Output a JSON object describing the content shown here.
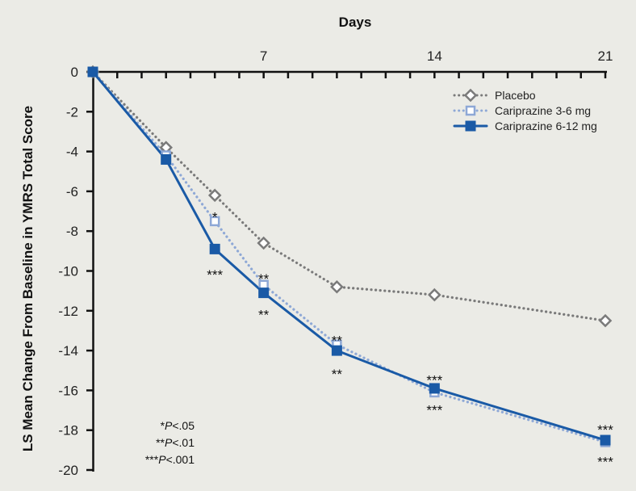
{
  "chart_data": {
    "type": "line",
    "xlabel": "Days",
    "ylabel": "LS Mean Change From Baseline in YMRS Total Score",
    "x_ticks": [
      7,
      14,
      21
    ],
    "y_ticks": [
      0,
      -2,
      -4,
      -6,
      -8,
      -10,
      -12,
      -14,
      -16,
      -18,
      -20
    ],
    "xlim": [
      0,
      21
    ],
    "ylim": [
      -20,
      0
    ],
    "x": [
      0,
      3,
      5,
      7,
      10,
      14,
      21
    ],
    "series": [
      {
        "name": "Placebo",
        "color": "#7a7a7a",
        "style": "dotted",
        "marker": "diamond-open",
        "values": [
          0,
          -3.8,
          -6.2,
          -8.6,
          -10.8,
          -11.2,
          -12.5
        ]
      },
      {
        "name": "Cariprazine 3-6 mg",
        "color": "#8ea8d6",
        "style": "dotted",
        "marker": "square-open",
        "values": [
          0,
          -4.2,
          -7.5,
          -10.7,
          -13.7,
          -16.1,
          -18.6
        ]
      },
      {
        "name": "Cariprazine 6-12 mg",
        "color": "#1a5aa6",
        "style": "solid",
        "marker": "square-filled",
        "values": [
          0,
          -4.4,
          -8.9,
          -11.1,
          -14.0,
          -15.9,
          -18.5
        ]
      }
    ],
    "annotations": [
      {
        "x": 5,
        "y": -7.2,
        "text": "*"
      },
      {
        "x": 5,
        "y": -10.1,
        "text": "***"
      },
      {
        "x": 7,
        "y": -10.3,
        "text": "**"
      },
      {
        "x": 7,
        "y": -12.1,
        "text": "**"
      },
      {
        "x": 10,
        "y": -13.4,
        "text": "**"
      },
      {
        "x": 10,
        "y": -15.1,
        "text": "**"
      },
      {
        "x": 14,
        "y": -15.4,
        "text": "***"
      },
      {
        "x": 14,
        "y": -16.9,
        "text": "***"
      },
      {
        "x": 21,
        "y": -17.9,
        "text": "***"
      },
      {
        "x": 21,
        "y": -19.5,
        "text": "***"
      }
    ],
    "notes": [
      "*P<.05",
      "**P<.01",
      "***P<.001"
    ],
    "legend_position": "top-right",
    "grid": false
  }
}
